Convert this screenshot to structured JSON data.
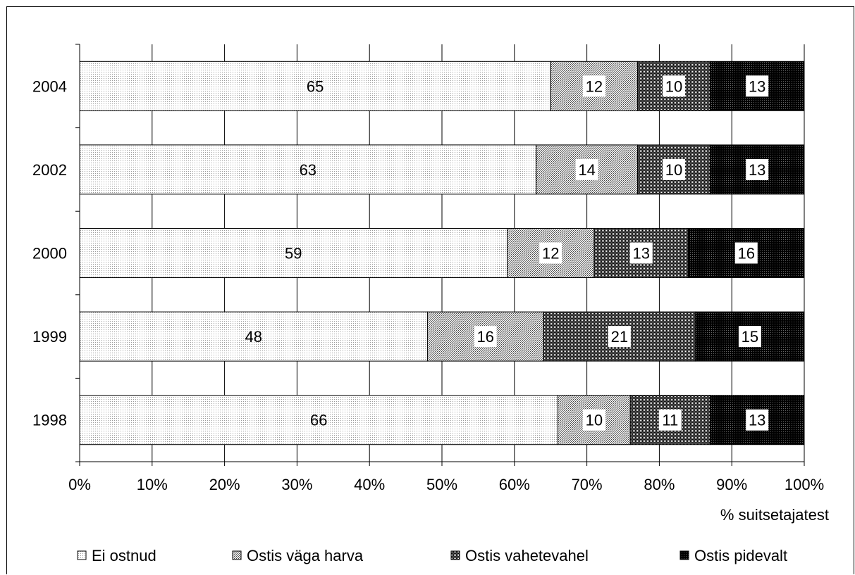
{
  "chart_data": {
    "type": "bar",
    "orientation": "horizontal",
    "stacked": "percent",
    "categories": [
      "2004",
      "2002",
      "2000",
      "1999",
      "1998"
    ],
    "series": [
      {
        "name": "Ei ostnud",
        "values": [
          65,
          63,
          59,
          48,
          66
        ],
        "color": "#f2f2f2",
        "pattern": "pat-light"
      },
      {
        "name": "Ostis väga harva",
        "values": [
          12,
          14,
          12,
          16,
          10
        ],
        "color": "#cfcfcf",
        "pattern": "pat-medium"
      },
      {
        "name": "Ostis vahetevahel",
        "values": [
          10,
          10,
          13,
          21,
          11
        ],
        "color": "#7a7a7a",
        "pattern": "pat-dark"
      },
      {
        "name": "Ostis pidevalt",
        "values": [
          13,
          13,
          16,
          15,
          13
        ],
        "color": "#000000",
        "pattern": "pat-black"
      }
    ],
    "x_ticks": [
      "0%",
      "10%",
      "20%",
      "30%",
      "40%",
      "50%",
      "60%",
      "70%",
      "80%",
      "90%",
      "100%"
    ],
    "xlabel": "% suitsetajatest",
    "ylabel": "",
    "title": "",
    "xlim": [
      0,
      100
    ],
    "grid": "vertical",
    "legend": "bottom"
  }
}
